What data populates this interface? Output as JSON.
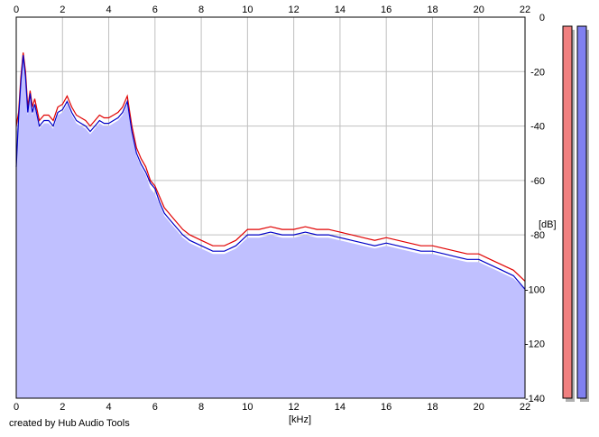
{
  "chart_data": {
    "type": "line",
    "title": "",
    "xlabel": "[kHz]",
    "ylabel": "[dB]",
    "xlim": [
      0,
      22
    ],
    "ylim": [
      -140,
      0
    ],
    "x_ticks": [
      0,
      2,
      4,
      6,
      8,
      10,
      12,
      14,
      16,
      18,
      20,
      22
    ],
    "y_ticks": [
      0,
      -20,
      -40,
      -60,
      -80,
      -100,
      -120,
      -140
    ],
    "x_tick_labels": [
      "0",
      "2",
      "4",
      "6",
      "8",
      "10",
      "12",
      "14",
      "16",
      "18",
      "20",
      "22"
    ],
    "y_tick_labels": [
      "0",
      "-20",
      "-40",
      "-60",
      "-80",
      "-100",
      "-120",
      "-140"
    ],
    "grid": true,
    "fill_color": "#c0c0ff",
    "series": [
      {
        "color": "#e00000",
        "x": [
          0,
          0.1,
          0.2,
          0.3,
          0.4,
          0.5,
          0.6,
          0.7,
          0.8,
          1.0,
          1.2,
          1.4,
          1.6,
          1.8,
          2.0,
          2.2,
          2.4,
          2.6,
          2.8,
          3.0,
          3.2,
          3.4,
          3.6,
          3.8,
          4.0,
          4.2,
          4.4,
          4.6,
          4.8,
          5.0,
          5.2,
          5.4,
          5.6,
          5.8,
          6.0,
          6.2,
          6.4,
          6.6,
          6.8,
          7.0,
          7.2,
          7.5,
          8.0,
          8.5,
          9.0,
          9.5,
          10.0,
          10.5,
          11.0,
          11.5,
          12.0,
          12.5,
          13.0,
          13.5,
          14.0,
          14.5,
          15.0,
          15.5,
          16.0,
          16.5,
          17.0,
          17.5,
          18.0,
          18.5,
          19.0,
          19.5,
          20.0,
          20.5,
          21.0,
          21.5,
          22.0
        ],
        "y": [
          -40,
          -35,
          -22,
          -13,
          -20,
          -33,
          -27,
          -33,
          -30,
          -38,
          -36,
          -36,
          -38,
          -33,
          -32,
          -29,
          -33,
          -36,
          -37,
          -38,
          -40,
          -38,
          -36,
          -37,
          -37,
          -36,
          -35,
          -33,
          -29,
          -40,
          -48,
          -52,
          -55,
          -60,
          -62,
          -66,
          -70,
          -72,
          -74,
          -76,
          -78,
          -80,
          -82,
          -84,
          -84,
          -82,
          -78,
          -78,
          -77,
          -78,
          -78,
          -77,
          -78,
          -78,
          -79,
          -80,
          -81,
          -82,
          -81,
          -82,
          -83,
          -84,
          -84,
          -85,
          -86,
          -87,
          -87,
          -89,
          -91,
          -93,
          -97
        ]
      },
      {
        "color": "#0000c8",
        "x": [
          0,
          0.1,
          0.2,
          0.3,
          0.4,
          0.5,
          0.6,
          0.7,
          0.8,
          1.0,
          1.2,
          1.4,
          1.6,
          1.8,
          2.0,
          2.2,
          2.4,
          2.6,
          2.8,
          3.0,
          3.2,
          3.4,
          3.6,
          3.8,
          4.0,
          4.2,
          4.4,
          4.6,
          4.8,
          5.0,
          5.2,
          5.4,
          5.6,
          5.8,
          6.0,
          6.2,
          6.4,
          6.6,
          6.8,
          7.0,
          7.2,
          7.5,
          8.0,
          8.5,
          9.0,
          9.5,
          10.0,
          10.5,
          11.0,
          11.5,
          12.0,
          12.5,
          13.0,
          13.5,
          14.0,
          14.5,
          15.0,
          15.5,
          16.0,
          16.5,
          17.0,
          17.5,
          18.0,
          18.5,
          19.0,
          19.5,
          20.0,
          20.5,
          21.0,
          21.5,
          22.0
        ],
        "y": [
          -55,
          -37,
          -24,
          -14,
          -22,
          -35,
          -28,
          -35,
          -32,
          -40,
          -38,
          -38,
          -40,
          -35,
          -34,
          -31,
          -35,
          -38,
          -39,
          -40,
          -42,
          -40,
          -38,
          -39,
          -39,
          -38,
          -37,
          -35,
          -31,
          -42,
          -50,
          -54,
          -57,
          -61,
          -63,
          -68,
          -72,
          -74,
          -76,
          -78,
          -80,
          -82,
          -84,
          -86,
          -86,
          -84,
          -80,
          -80,
          -79,
          -80,
          -80,
          -79,
          -80,
          -80,
          -81,
          -82,
          -83,
          -84,
          -83,
          -84,
          -85,
          -86,
          -86,
          -87,
          -88,
          -89,
          -89,
          -91,
          -93,
          -95,
          -100
        ]
      }
    ]
  },
  "meters": {
    "left_color": "#f08080",
    "right_color": "#8080f0"
  },
  "footer": {
    "credit": "created by Hub Audio Tools"
  }
}
